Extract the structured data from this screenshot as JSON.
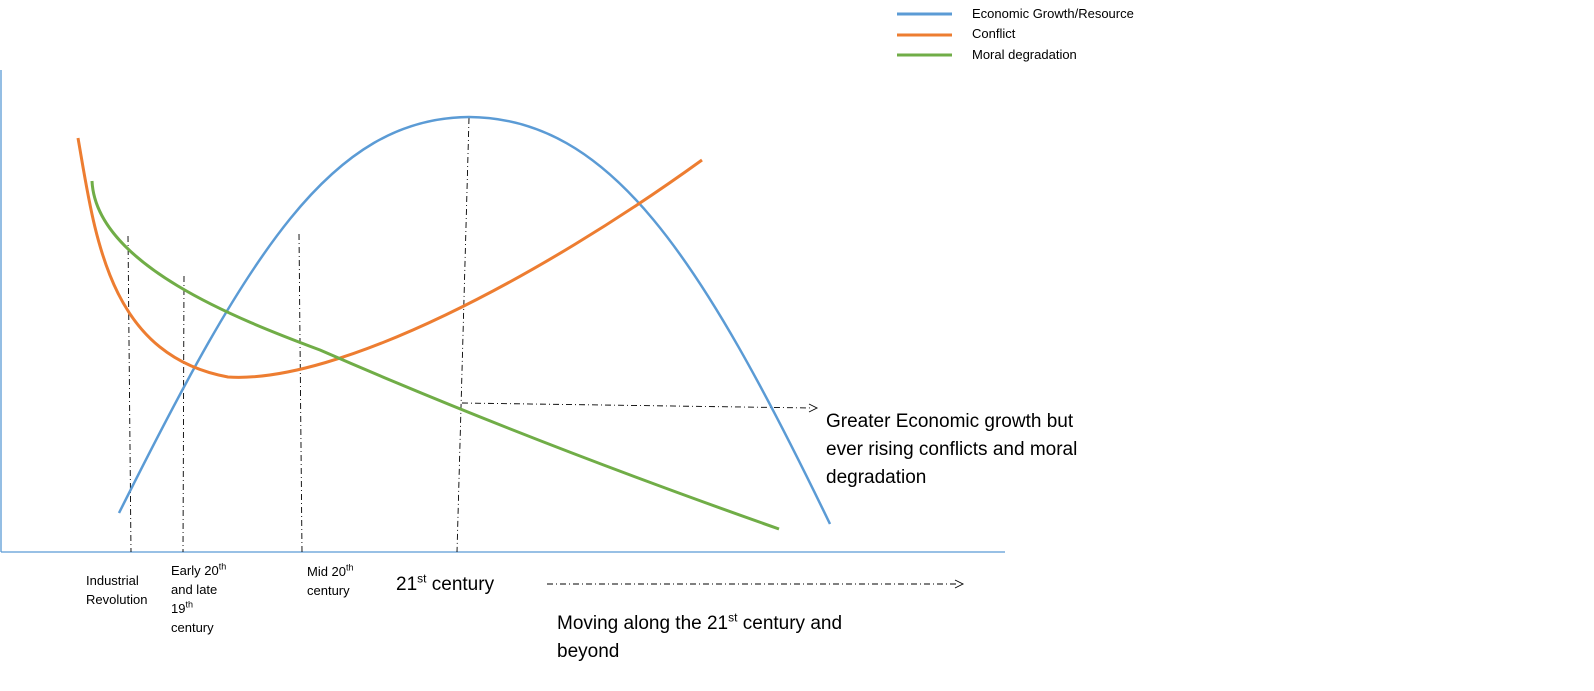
{
  "legend": [
    {
      "label": "Economic Growth/Resource",
      "color": "#5b9bd5"
    },
    {
      "label": "Conflict",
      "color": "#ed7d31"
    },
    {
      "label": "Moral degradation",
      "color": "#70ad47"
    }
  ],
  "axis_color": "#5b9bd5",
  "guide_color": "#000000",
  "labels": {
    "industrial": {
      "line1": "Industrial",
      "line2": "Revolution"
    },
    "early": {
      "line1_pre": "Early 20",
      "line1_sup": "th",
      "line2": "and late",
      "line3_pre": "19",
      "line3_sup": "th",
      "line4": "century"
    },
    "mid": {
      "line1_pre": "Mid 20",
      "line1_sup": "th",
      "line2": "century"
    },
    "c21": {
      "pre": "21",
      "sup": "st",
      "post": " century"
    },
    "moving": {
      "line1_pre": "Moving along the 21",
      "line1_sup": "st",
      "line1_post": " century and",
      "line2": "beyond"
    },
    "annotation": {
      "line1": "Greater Economic growth but",
      "line2": "ever rising conflicts and moral",
      "line3": "degradation"
    }
  }
}
